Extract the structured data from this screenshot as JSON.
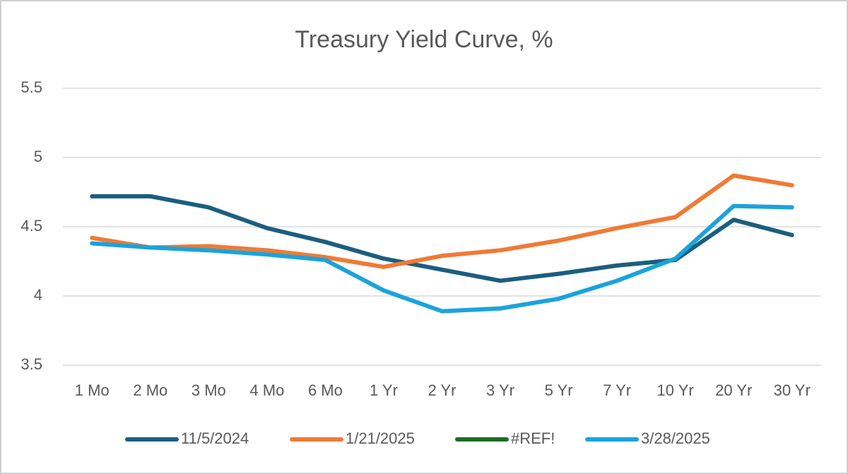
{
  "chart_data": {
    "type": "line",
    "title": "Treasury Yield Curve, %",
    "categories": [
      "1 Mo",
      "2 Mo",
      "3 Mo",
      "4 Mo",
      "6 Mo",
      "1 Yr",
      "2 Yr",
      "3 Yr",
      "5 Yr",
      "7 Yr",
      "10 Yr",
      "20 Yr",
      "30 Yr"
    ],
    "series": [
      {
        "name": "11/5/2024",
        "color": "#1b5e7e",
        "values": [
          4.72,
          4.72,
          4.64,
          4.49,
          4.39,
          4.27,
          4.19,
          4.11,
          4.16,
          4.22,
          4.26,
          4.55,
          4.44
        ]
      },
      {
        "name": "1/21/2025",
        "color": "#f07a35",
        "values": [
          4.42,
          4.35,
          4.36,
          4.33,
          4.28,
          4.21,
          4.29,
          4.33,
          4.4,
          4.49,
          4.57,
          4.87,
          4.8
        ]
      },
      {
        "name": "#REF!",
        "color": "#1e6b24",
        "values": [
          null,
          null,
          null,
          null,
          null,
          null,
          null,
          null,
          null,
          null,
          null,
          null,
          null
        ]
      },
      {
        "name": "3/28/2025",
        "color": "#1ba3db",
        "values": [
          4.38,
          4.35,
          4.33,
          4.3,
          4.26,
          4.04,
          3.89,
          3.91,
          3.98,
          4.11,
          4.27,
          4.65,
          4.64
        ]
      }
    ],
    "ylim": [
      3.5,
      5.5
    ],
    "yticks": [
      3.5,
      4,
      4.5,
      5,
      5.5
    ],
    "grid": true,
    "legend": "bottom"
  }
}
